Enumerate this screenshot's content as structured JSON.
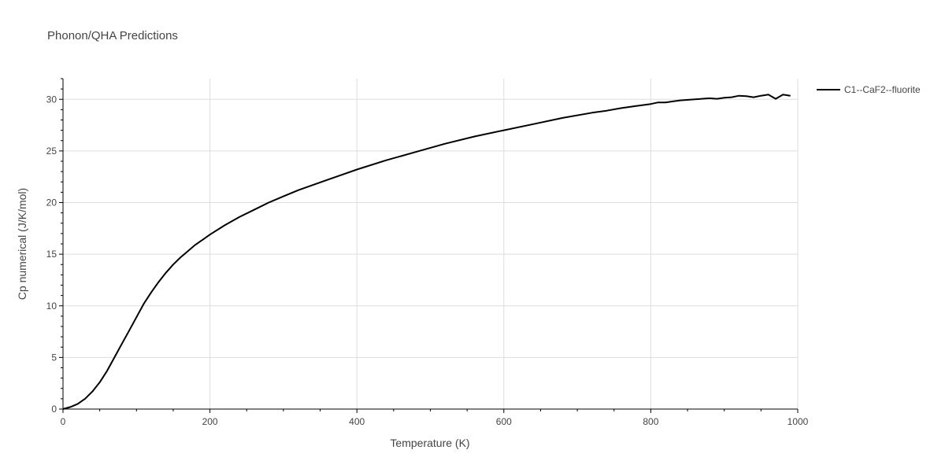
{
  "chart_data": {
    "type": "line",
    "title": "Phonon/QHA Predictions",
    "xlabel": "Temperature (K)",
    "ylabel": "Cp numerical (J/K/mol)",
    "xlim": [
      0,
      1000
    ],
    "ylim": [
      0,
      32
    ],
    "x_ticks": [
      0,
      200,
      400,
      600,
      800,
      1000
    ],
    "y_ticks": [
      0,
      5,
      10,
      15,
      20,
      25,
      30
    ],
    "grid": true,
    "legend_position": "top-right",
    "series": [
      {
        "name": "C1--CaF2--fluorite",
        "color": "#000000",
        "x": [
          0,
          10,
          20,
          30,
          40,
          50,
          60,
          70,
          80,
          90,
          100,
          110,
          120,
          130,
          140,
          150,
          160,
          170,
          180,
          190,
          200,
          220,
          240,
          260,
          280,
          300,
          320,
          340,
          360,
          380,
          400,
          440,
          480,
          520,
          560,
          600,
          640,
          680,
          720,
          740,
          760,
          780,
          790,
          800,
          810,
          820,
          830,
          840,
          860,
          880,
          890,
          900,
          910,
          920,
          930,
          940,
          950,
          960,
          970,
          980,
          990
        ],
        "y": [
          0,
          0.2,
          0.5,
          1.0,
          1.7,
          2.6,
          3.7,
          5.0,
          6.3,
          7.6,
          8.9,
          10.2,
          11.3,
          12.3,
          13.2,
          14.0,
          14.7,
          15.3,
          15.9,
          16.4,
          16.9,
          17.8,
          18.6,
          19.3,
          20.0,
          20.6,
          21.2,
          21.7,
          22.2,
          22.7,
          23.2,
          24.1,
          24.9,
          25.7,
          26.4,
          27.0,
          27.6,
          28.2,
          28.7,
          28.9,
          29.15,
          29.35,
          29.45,
          29.55,
          29.7,
          29.7,
          29.8,
          29.9,
          30.0,
          30.1,
          30.05,
          30.15,
          30.2,
          30.35,
          30.3,
          30.2,
          30.35,
          30.45,
          30.05,
          30.45,
          30.35
        ]
      }
    ]
  }
}
